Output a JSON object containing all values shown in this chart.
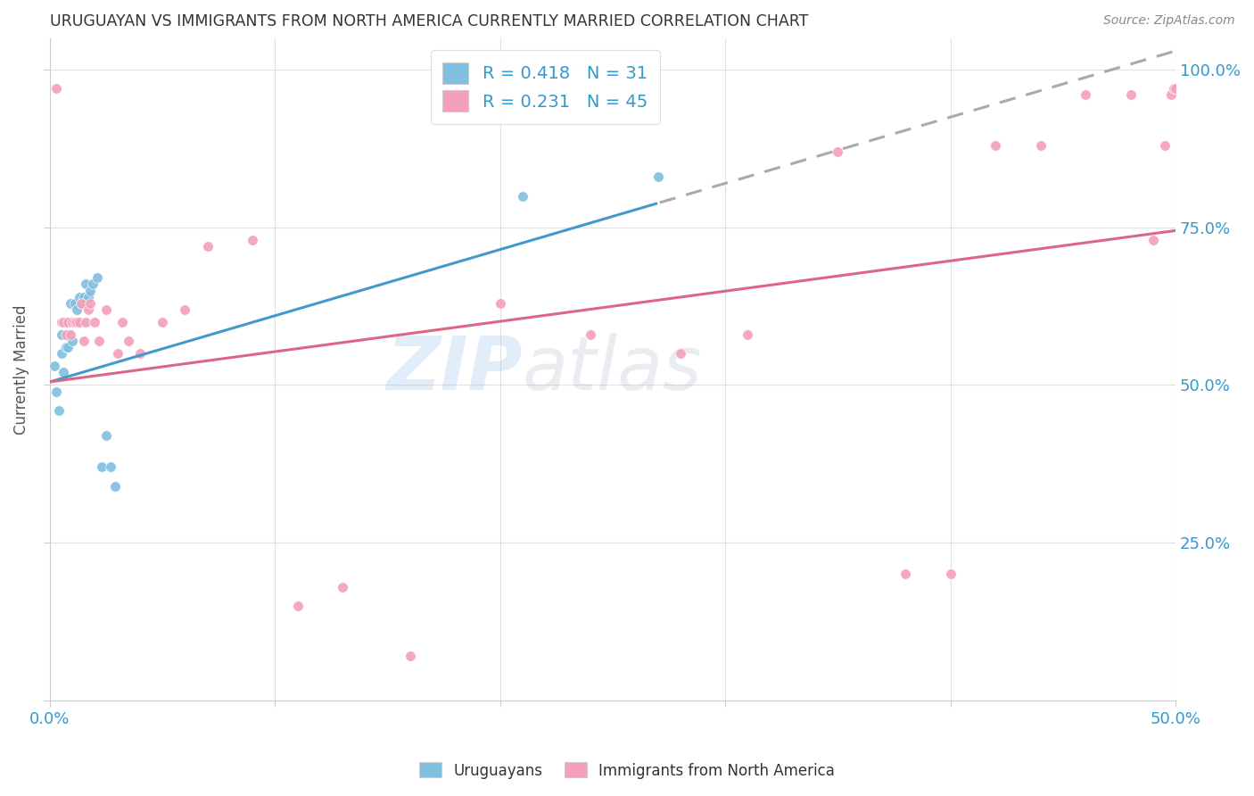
{
  "title": "URUGUAYAN VS IMMIGRANTS FROM NORTH AMERICA CURRENTLY MARRIED CORRELATION CHART",
  "source": "Source: ZipAtlas.com",
  "ylabel": "Currently Married",
  "xlim": [
    0.0,
    0.5
  ],
  "ylim": [
    0.0,
    1.05
  ],
  "ytick_positions": [
    0.0,
    0.25,
    0.5,
    0.75,
    1.0
  ],
  "ytick_labels": [
    "",
    "25.0%",
    "50.0%",
    "75.0%",
    "100.0%"
  ],
  "xtick_positions": [
    0.0,
    0.1,
    0.2,
    0.3,
    0.4,
    0.5
  ],
  "xtick_labels": [
    "0.0%",
    "",
    "",
    "",
    "",
    "50.0%"
  ],
  "blue_color": "#7fbfdf",
  "pink_color": "#f4a0bb",
  "blue_line_color": "#4499cc",
  "pink_line_color": "#dd6688",
  "dashed_line_color": "#aaaaaa",
  "R_blue": 0.418,
  "N_blue": 31,
  "R_pink": 0.231,
  "N_pink": 45,
  "blue_x": [
    0.002,
    0.003,
    0.004,
    0.005,
    0.005,
    0.006,
    0.007,
    0.007,
    0.008,
    0.008,
    0.009,
    0.009,
    0.01,
    0.01,
    0.011,
    0.011,
    0.012,
    0.013,
    0.014,
    0.015,
    0.016,
    0.017,
    0.018,
    0.019,
    0.021,
    0.023,
    0.025,
    0.027,
    0.029,
    0.21,
    0.27
  ],
  "blue_y": [
    0.53,
    0.49,
    0.46,
    0.55,
    0.58,
    0.52,
    0.56,
    0.6,
    0.56,
    0.58,
    0.6,
    0.63,
    0.57,
    0.6,
    0.6,
    0.63,
    0.62,
    0.64,
    0.63,
    0.64,
    0.66,
    0.64,
    0.65,
    0.66,
    0.67,
    0.37,
    0.42,
    0.37,
    0.34,
    0.8,
    0.83
  ],
  "pink_x": [
    0.003,
    0.005,
    0.006,
    0.007,
    0.008,
    0.009,
    0.01,
    0.011,
    0.012,
    0.013,
    0.014,
    0.015,
    0.016,
    0.017,
    0.018,
    0.02,
    0.022,
    0.025,
    0.03,
    0.032,
    0.035,
    0.04,
    0.05,
    0.06,
    0.07,
    0.09,
    0.11,
    0.13,
    0.16,
    0.2,
    0.24,
    0.28,
    0.31,
    0.35,
    0.38,
    0.4,
    0.42,
    0.44,
    0.46,
    0.48,
    0.49,
    0.495,
    0.498,
    0.499,
    0.5
  ],
  "pink_y": [
    0.97,
    0.6,
    0.6,
    0.58,
    0.6,
    0.58,
    0.6,
    0.6,
    0.6,
    0.6,
    0.63,
    0.57,
    0.6,
    0.62,
    0.63,
    0.6,
    0.57,
    0.62,
    0.55,
    0.6,
    0.57,
    0.55,
    0.6,
    0.62,
    0.72,
    0.73,
    0.15,
    0.18,
    0.07,
    0.63,
    0.58,
    0.55,
    0.58,
    0.87,
    0.2,
    0.2,
    0.88,
    0.88,
    0.96,
    0.96,
    0.73,
    0.88,
    0.96,
    0.97,
    0.97
  ],
  "watermark_zip": "ZIP",
  "watermark_atlas": "atlas",
  "background_color": "#ffffff",
  "grid_color": "#e0e0e0",
  "legend_text_color": "#3399cc",
  "axis_label_color": "#3399cc",
  "title_color": "#333333",
  "source_color": "#888888"
}
